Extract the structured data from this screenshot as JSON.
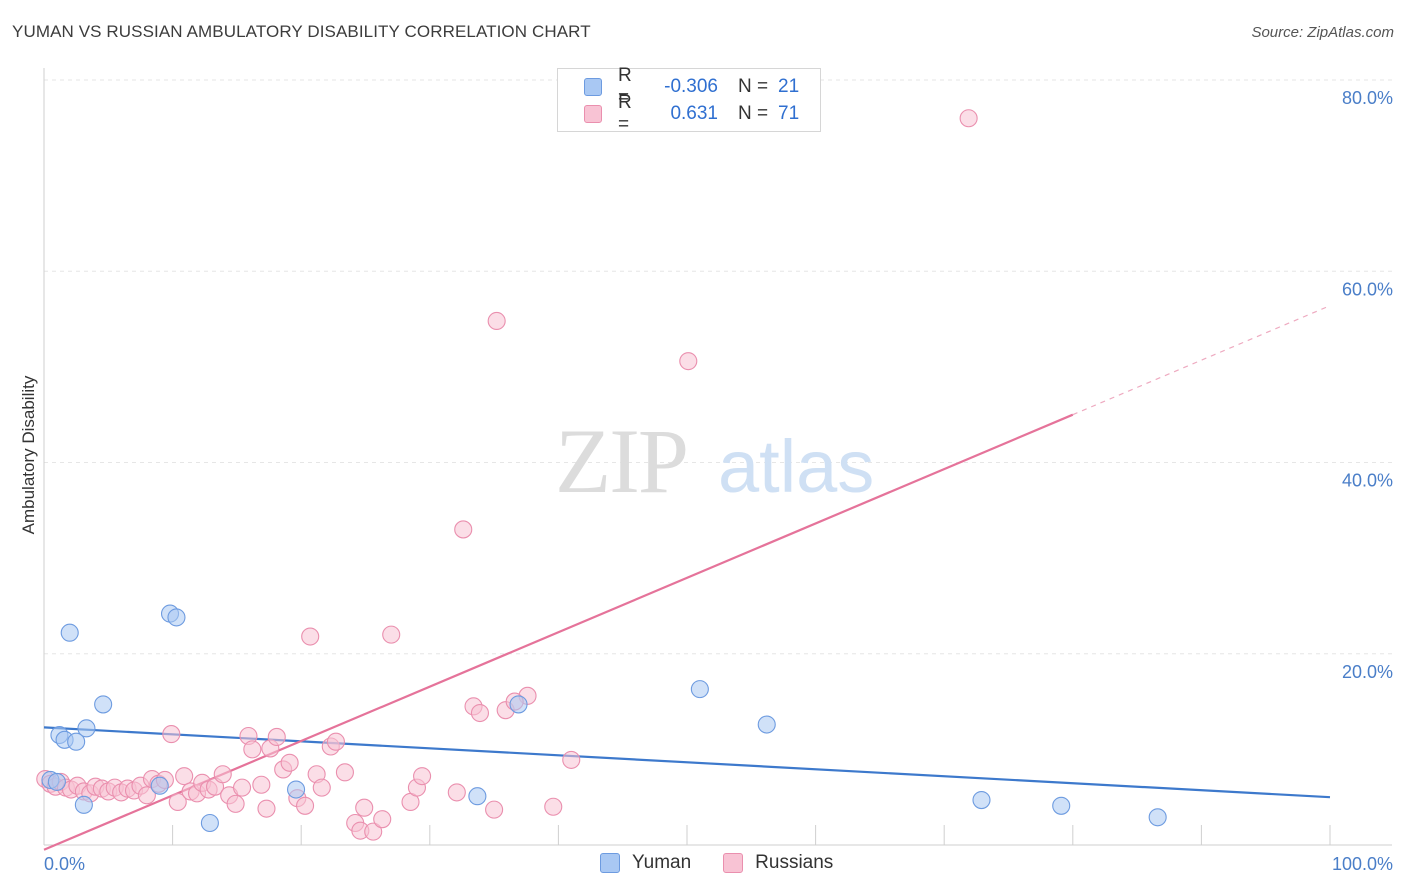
{
  "title": "YUMAN VS RUSSIAN AMBULATORY DISABILITY CORRELATION CHART",
  "source": "Source: ZipAtlas.com",
  "watermark": {
    "zip": "ZIP",
    "atlas": "atlas"
  },
  "legend": {
    "rows": [
      {
        "name": "Yuman",
        "r_label": "R =",
        "r_value": "-0.306",
        "n_label": "N =",
        "n_value": "21",
        "color": "#a9c8f3",
        "border": "#6d9be0"
      },
      {
        "name": "Russians",
        "r_label": "R =",
        "r_value": "0.631",
        "n_label": "N =",
        "n_value": "71",
        "color": "#f8c3d4",
        "border": "#ea8fae"
      }
    ]
  },
  "bottom_legend": [
    {
      "label": "Yuman",
      "color": "#a9c8f3",
      "border": "#6d9be0"
    },
    {
      "label": "Russians",
      "color": "#f8c3d4",
      "border": "#ea8fae"
    }
  ],
  "chart_data": {
    "type": "scatter",
    "title": "YUMAN VS RUSSIAN AMBULATORY DISABILITY CORRELATION CHART",
    "xlabel": "",
    "ylabel": "Ambulatory Disability",
    "xlim": [
      0,
      100
    ],
    "ylim": [
      0,
      80
    ],
    "x_ticks": [
      {
        "value": 0,
        "label": "0.0%"
      },
      {
        "value": 100,
        "label": "100.0%"
      }
    ],
    "y_ticks": [
      {
        "value": 20,
        "label": "20.0%"
      },
      {
        "value": 40,
        "label": "40.0%"
      },
      {
        "value": 60,
        "label": "60.0%"
      },
      {
        "value": 80,
        "label": "80.0%"
      }
    ],
    "grid": true,
    "legend_position": "top-center",
    "series": [
      {
        "name": "Yuman",
        "color": "#6d9be0",
        "fill": "#a9c8f3",
        "points": [
          [
            0.5,
            6.8
          ],
          [
            1.2,
            11.5
          ],
          [
            1.6,
            11.0
          ],
          [
            2.0,
            22.2
          ],
          [
            2.5,
            10.8
          ],
          [
            3.1,
            4.2
          ],
          [
            3.3,
            12.2
          ],
          [
            4.6,
            14.7
          ],
          [
            9.0,
            6.2
          ],
          [
            9.8,
            24.2
          ],
          [
            10.3,
            23.8
          ],
          [
            12.9,
            2.3
          ],
          [
            19.6,
            5.8
          ],
          [
            33.7,
            5.1
          ],
          [
            36.9,
            14.7
          ],
          [
            51.0,
            16.3
          ],
          [
            56.2,
            12.6
          ],
          [
            72.9,
            4.7
          ],
          [
            79.1,
            4.1
          ],
          [
            86.6,
            2.9
          ],
          [
            1.0,
            6.6
          ]
        ],
        "trend": {
          "x": [
            0,
            100
          ],
          "y": [
            12.3,
            5.0
          ]
        }
      },
      {
        "name": "Russians",
        "color": "#ea8fae",
        "fill": "#f8c3d4",
        "points": [
          [
            0.1,
            6.9
          ],
          [
            0.5,
            6.4
          ],
          [
            0.9,
            6.1
          ],
          [
            1.3,
            6.6
          ],
          [
            1.7,
            6.0
          ],
          [
            2.1,
            5.8
          ],
          [
            2.6,
            6.2
          ],
          [
            3.1,
            5.6
          ],
          [
            3.6,
            5.4
          ],
          [
            4.0,
            6.1
          ],
          [
            4.5,
            5.9
          ],
          [
            5.0,
            5.6
          ],
          [
            5.5,
            6.0
          ],
          [
            6.0,
            5.5
          ],
          [
            6.5,
            5.9
          ],
          [
            7.0,
            5.7
          ],
          [
            7.5,
            6.2
          ],
          [
            8.0,
            5.2
          ],
          [
            8.4,
            6.9
          ],
          [
            8.9,
            6.4
          ],
          [
            9.4,
            6.8
          ],
          [
            9.9,
            11.6
          ],
          [
            10.4,
            4.5
          ],
          [
            10.9,
            7.2
          ],
          [
            11.4,
            5.6
          ],
          [
            11.9,
            5.4
          ],
          [
            12.3,
            6.5
          ],
          [
            12.8,
            5.8
          ],
          [
            13.3,
            6.1
          ],
          [
            13.9,
            7.4
          ],
          [
            14.4,
            5.2
          ],
          [
            14.9,
            4.3
          ],
          [
            15.4,
            6.0
          ],
          [
            15.9,
            11.4
          ],
          [
            16.2,
            10.0
          ],
          [
            16.9,
            6.3
          ],
          [
            17.3,
            3.8
          ],
          [
            17.6,
            10.1
          ],
          [
            18.1,
            11.3
          ],
          [
            18.6,
            7.9
          ],
          [
            19.1,
            8.6
          ],
          [
            19.7,
            4.9
          ],
          [
            20.3,
            4.1
          ],
          [
            20.7,
            21.8
          ],
          [
            21.2,
            7.4
          ],
          [
            21.6,
            6.0
          ],
          [
            22.3,
            10.3
          ],
          [
            22.7,
            10.8
          ],
          [
            23.4,
            7.6
          ],
          [
            24.2,
            2.3
          ],
          [
            24.6,
            1.5
          ],
          [
            24.9,
            3.9
          ],
          [
            25.6,
            1.4
          ],
          [
            26.3,
            2.7
          ],
          [
            27.0,
            22.0
          ],
          [
            28.5,
            4.5
          ],
          [
            29.0,
            6.0
          ],
          [
            29.4,
            7.2
          ],
          [
            32.1,
            5.5
          ],
          [
            32.6,
            33.0
          ],
          [
            33.4,
            14.5
          ],
          [
            33.9,
            13.8
          ],
          [
            35.0,
            3.7
          ],
          [
            35.9,
            14.1
          ],
          [
            37.6,
            15.6
          ],
          [
            39.6,
            4.0
          ],
          [
            41.0,
            8.9
          ],
          [
            35.2,
            54.8
          ],
          [
            50.1,
            50.6
          ],
          [
            71.9,
            76.0
          ],
          [
            36.6,
            15.0
          ]
        ],
        "trend": {
          "x": [
            0,
            80
          ],
          "y": [
            -0.5,
            45.0
          ]
        },
        "trend_extension": {
          "x": [
            80,
            100
          ],
          "y": [
            45.0,
            56.4
          ]
        }
      }
    ]
  }
}
